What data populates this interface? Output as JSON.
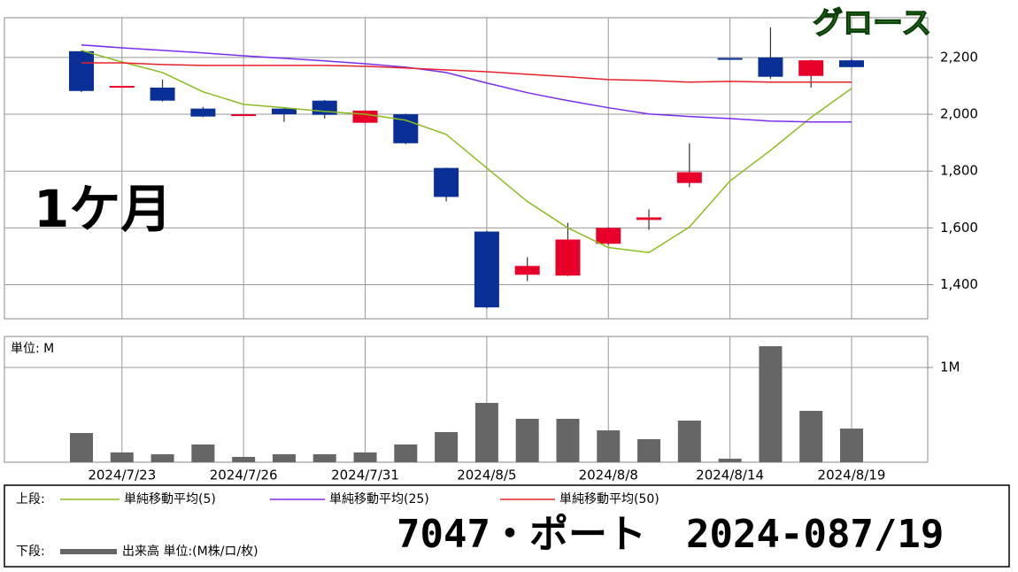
{
  "chart_data": {
    "type": "candlestick",
    "period_label": "1ケ月",
    "market_label": "グロース",
    "code_name": "7047・ポート",
    "date_label": "2024-087/19",
    "upper_label": "上段:",
    "lower_label": "下段:",
    "categories": [
      null,
      "2024/7/23",
      null,
      null,
      "2024/7/26",
      null,
      null,
      "2024/7/31",
      null,
      null,
      "2024/8/5",
      null,
      null,
      "2024/8/8",
      null,
      null,
      "2024/8/14",
      null,
      null,
      "2024/8/19"
    ],
    "open": [
      2222,
      2095,
      2094,
      2020,
      1995,
      2020,
      2048,
      1970,
      2000,
      1811,
      1587,
      1435,
      1432,
      1544,
      1628,
      1758,
      2198,
      2200,
      2135,
      2190
    ],
    "high": [
      2225,
      2100,
      2122,
      2026,
      2000,
      2023,
      2050,
      2015,
      2002,
      1812,
      1590,
      1497,
      1618,
      1602,
      1665,
      1898,
      2198,
      2306,
      2192,
      2195
    ],
    "low": [
      2078,
      2093,
      2045,
      1990,
      1993,
      1973,
      1985,
      1968,
      1895,
      1693,
      1317,
      1413,
      1430,
      1540,
      1593,
      1743,
      2196,
      2125,
      2094,
      2165
    ],
    "close": [
      2082,
      2100,
      2048,
      1992,
      2000,
      2000,
      1998,
      2013,
      1898,
      1709,
      1320,
      1466,
      1559,
      1600,
      1637,
      1796,
      2196,
      2132,
      2190,
      2166
    ],
    "up_color": "#e8002a",
    "down_color": "#0a2f96",
    "ylim": [
      1280,
      2340
    ],
    "yticks": [
      {
        "value": 1400,
        "label": "1,400"
      },
      {
        "value": 1600,
        "label": "1,600"
      },
      {
        "value": 1800,
        "label": "1,800"
      },
      {
        "value": 2000,
        "label": "2,000"
      },
      {
        "value": 2200,
        "label": "2,200"
      }
    ],
    "grid": true,
    "series": [
      {
        "name": "単純移動平均(5)",
        "color": "#8cbc1c",
        "values": [
          2225,
          2184,
          2147,
          2079,
          2035,
          2023,
          2010,
          2000,
          1979,
          1929,
          1811,
          1693,
          1600,
          1531,
          1513,
          1603,
          1765,
          1873,
          1989,
          2091
        ]
      },
      {
        "name": "単純移動平均(25)",
        "color": "#7a2cf0",
        "values": [
          2244,
          2234,
          2225,
          2216,
          2206,
          2197,
          2188,
          2178,
          2166,
          2147,
          2110,
          2076,
          2048,
          2023,
          2001,
          1992,
          1985,
          1976,
          1973,
          1973
        ]
      },
      {
        "name": "単純移動平均(50)",
        "color": "#e8202a",
        "values": [
          2181,
          2181,
          2175,
          2172,
          2172,
          2172,
          2172,
          2169,
          2163,
          2156,
          2150,
          2141,
          2132,
          2122,
          2119,
          2113,
          2116,
          2113,
          2113,
          2113
        ]
      }
    ],
    "volume": {
      "type": "bar",
      "name": "出来高 単位:(M株/ロ/枚)",
      "unit_label": "単位: M",
      "color": "#666666",
      "values": [
        308000,
        103000,
        84000,
        187000,
        56000,
        84000,
        84000,
        103000,
        187000,
        318000,
        626000,
        458000,
        458000,
        336000,
        243000,
        439000,
        37000,
        1224000,
        542000,
        355000
      ],
      "ylim": [
        0,
        1327000
      ],
      "yticks": [
        {
          "value": 1000000,
          "label": "1M"
        }
      ]
    }
  }
}
